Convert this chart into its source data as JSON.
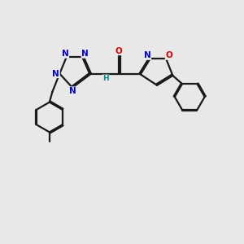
{
  "bg_color": "#e8e8e8",
  "bond_color": "#1a1a1a",
  "N_color": "#0000dd",
  "O_color": "#dd0000",
  "NH_color": "#008b8b",
  "lw": 1.6,
  "dbo": 0.06,
  "fs": 7.5,
  "xlim": [
    0,
    10
  ],
  "ylim": [
    0,
    10
  ]
}
